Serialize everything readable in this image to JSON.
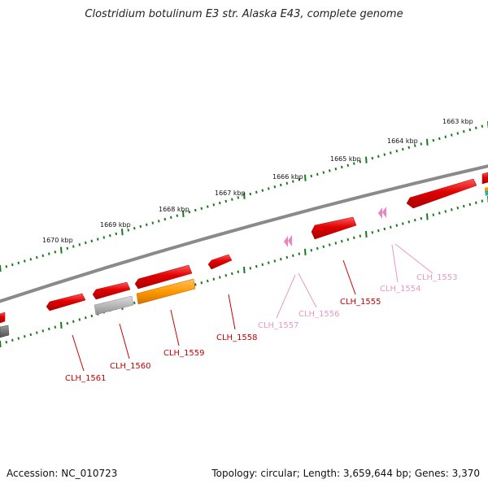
{
  "title": "Clostridium botulinum E3 str. Alaska E43, complete genome",
  "footer": {
    "accession": "Accession: NC_010723",
    "summary": "Topology: circular; Length: 3,659,644 bp; Genes: 3,370"
  },
  "colors": {
    "backbone": "#8a8a8a",
    "tick": "#1a7a1a",
    "gene_red": "#e00000",
    "gene_pink": "#ee82c0",
    "gene_orange": "#ff9900",
    "gene_gray": "#b8b8b8",
    "label_red": "#cc0000",
    "label_pink": "#e899c2"
  },
  "scale_labels": [
    "1663 kbp",
    "1664 kbp",
    "1665 kbp",
    "1666 kbp",
    "1667 kbp",
    "1668 kbp",
    "1669 kbp",
    "1670 kbp"
  ],
  "genes": [
    {
      "name": "CLH_1553",
      "color": "pink"
    },
    {
      "name": "CLH_1554",
      "color": "pink"
    },
    {
      "name": "CLH_1555",
      "color": "red"
    },
    {
      "name": "CLH_1556",
      "color": "pink"
    },
    {
      "name": "CLH_1557",
      "color": "pink"
    },
    {
      "name": "CLH_1558",
      "color": "red"
    },
    {
      "name": "CLH_1559",
      "color": "red"
    },
    {
      "name": "CLH_1560",
      "color": "red"
    },
    {
      "name": "CLH_1561",
      "color": "red"
    }
  ]
}
